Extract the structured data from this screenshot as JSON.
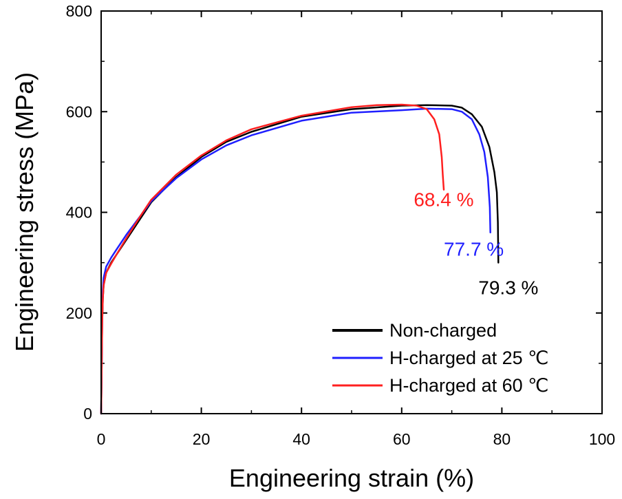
{
  "chart_data": {
    "type": "line",
    "xlabel": "Engineering strain (%)",
    "ylabel": "Engineering stress (MPa)",
    "xlim": [
      0,
      100
    ],
    "ylim": [
      0,
      800
    ],
    "x_ticks": [
      0,
      20,
      40,
      60,
      80,
      100
    ],
    "y_ticks": [
      0,
      200,
      400,
      600,
      800
    ],
    "grid": false,
    "legend_position": "bottom-right",
    "colors": {
      "non_charged": "#000000",
      "h25": "#1f1fff",
      "h60": "#ff1f1f"
    },
    "series": [
      {
        "name": "Non-charged",
        "color": "#000000",
        "x": [
          0,
          0.1,
          0.2,
          0.35,
          0.5,
          1,
          2,
          3,
          5,
          8,
          10,
          15,
          20,
          25,
          30,
          40,
          50,
          60,
          65,
          70,
          72,
          74,
          76,
          77.5,
          78.5,
          79,
          79.2,
          79.3
        ],
        "y": [
          0,
          80,
          180,
          230,
          255,
          280,
          300,
          315,
          345,
          390,
          420,
          470,
          510,
          540,
          560,
          590,
          605,
          612,
          613,
          612,
          608,
          595,
          570,
          530,
          480,
          440,
          380,
          300
        ]
      },
      {
        "name": "H-charged at 25 ℃",
        "color": "#1f1fff",
        "x": [
          0,
          0.1,
          0.2,
          0.35,
          0.5,
          1,
          2,
          3,
          5,
          8,
          10,
          15,
          20,
          25,
          30,
          40,
          50,
          60,
          65,
          70,
          72,
          74,
          75.5,
          76.5,
          77.2,
          77.6,
          77.7
        ],
        "y": [
          0,
          80,
          190,
          245,
          270,
          292,
          310,
          325,
          355,
          395,
          422,
          468,
          505,
          533,
          553,
          582,
          598,
          603,
          606,
          605,
          600,
          585,
          555,
          520,
          470,
          410,
          360
        ]
      },
      {
        "name": "H-charged at 60 ℃",
        "color": "#ff1f1f",
        "x": [
          0,
          0.1,
          0.2,
          0.35,
          0.5,
          1,
          2,
          3,
          5,
          8,
          10,
          15,
          20,
          25,
          30,
          40,
          50,
          55,
          60,
          63,
          65,
          66.5,
          67.5,
          68,
          68.2,
          68.4
        ],
        "y": [
          0,
          80,
          180,
          230,
          255,
          280,
          298,
          315,
          348,
          395,
          425,
          475,
          513,
          543,
          565,
          592,
          609,
          613,
          614,
          612,
          605,
          585,
          555,
          510,
          475,
          445
        ]
      }
    ],
    "annotations": [
      {
        "text": "68.4 %",
        "x": 68.4,
        "y": 412,
        "color": "#ff1f1f"
      },
      {
        "text": "77.7 %",
        "x": 74.4,
        "y": 314,
        "color": "#1f1fff"
      },
      {
        "text": "79.3 %",
        "x": 81.3,
        "y": 237,
        "color": "#000000"
      }
    ]
  }
}
